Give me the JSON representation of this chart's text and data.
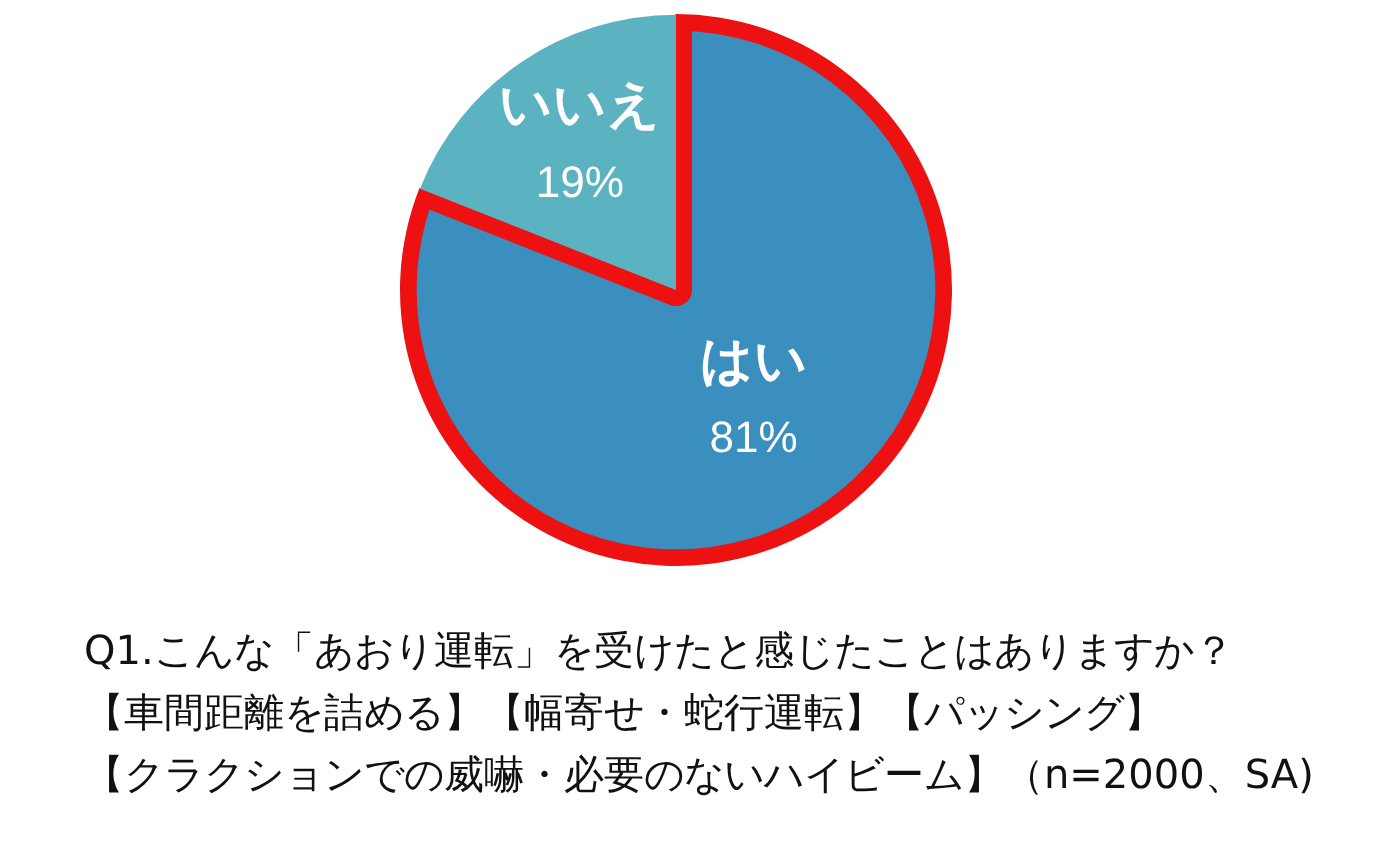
{
  "chart_data": {
    "type": "pie",
    "title": "Q1.こんな「あおり運転」を受けたと感じたことはありますか？",
    "annotations": [
      "【車間距離を詰める】【幅寄せ・蛇行運転】【パッシング】",
      "【クラクションでの威嚇・必要のないハイビーム】（n=2000、SA)"
    ],
    "categories": [
      "はい",
      "いいえ"
    ],
    "values": [
      81,
      19
    ],
    "colors": [
      "#3a8fbe",
      "#5bb3c1"
    ],
    "value_labels": [
      "81%",
      "19%"
    ],
    "legend": false
  }
}
